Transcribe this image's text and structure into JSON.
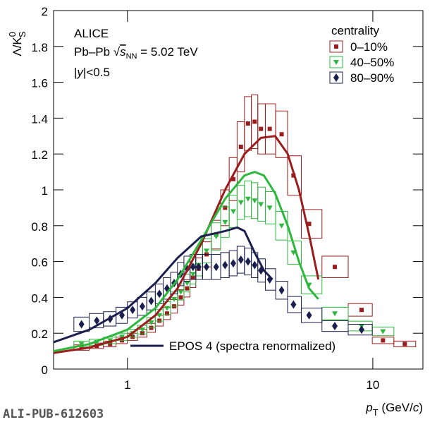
{
  "chart_data": {
    "type": "line",
    "experiment": "ALICE",
    "system": [
      "Pb–Pb ",
      "√",
      "s",
      "NN",
      " = 5.02 TeV"
    ],
    "rapidity": [
      "|",
      "y",
      "|<0.5"
    ],
    "legend_title": "centrality",
    "y_label": [
      "Λ/K",
      "0",
      "S"
    ],
    "x_label": [
      "p",
      "T",
      " (GeV/",
      "c",
      ")"
    ],
    "footer": "ALI-PUB-612603",
    "log_x": true,
    "xlim": [
      0.5,
      16
    ],
    "xticks": [
      1,
      10
    ],
    "ylim": [
      0,
      2
    ],
    "yticks": [
      0,
      0.2,
      0.4,
      0.6,
      0.8,
      1,
      1.2,
      1.4,
      1.6,
      1.8,
      2
    ],
    "x": [
      0.65,
      0.75,
      0.85,
      0.95,
      1.05,
      1.15,
      1.25,
      1.35,
      1.45,
      1.55,
      1.65,
      1.75,
      1.85,
      1.95,
      2.1,
      2.3,
      2.5,
      2.7,
      2.9,
      3.1,
      3.3,
      3.5,
      3.8,
      4.25,
      4.75,
      5.5,
      7,
      9,
      11,
      13.5
    ],
    "series": [
      {
        "name": "0–10%",
        "color": "#9b1c1c",
        "marker": "square",
        "values": [
          0.12,
          0.13,
          0.14,
          0.16,
          0.18,
          0.2,
          0.23,
          0.27,
          0.31,
          0.35,
          0.4,
          0.45,
          0.51,
          0.56,
          0.64,
          0.75,
          0.9,
          1.06,
          1.24,
          1.37,
          1.38,
          1.34,
          1.34,
          1.31,
          1.08,
          0.81,
          0.57,
          0.33,
          0.16,
          0.14
        ],
        "errors": [
          0.015,
          0.015,
          0.016,
          0.018,
          0.02,
          0.022,
          0.025,
          0.03,
          0.034,
          0.038,
          0.043,
          0.048,
          0.055,
          0.06,
          0.07,
          0.08,
          0.1,
          0.12,
          0.14,
          0.15,
          0.15,
          0.14,
          0.14,
          0.13,
          0.11,
          0.08,
          0.06,
          0.035,
          0.018,
          0.016
        ]
      },
      {
        "name": "40–50%",
        "color": "#2db83d",
        "marker": "triangle",
        "values": [
          0.14,
          0.15,
          0.16,
          0.18,
          0.2,
          0.22,
          0.26,
          0.3,
          0.34,
          0.39,
          0.43,
          0.48,
          0.53,
          0.58,
          0.66,
          0.74,
          0.82,
          0.88,
          0.93,
          0.95,
          0.94,
          0.92,
          0.9,
          0.8,
          0.65,
          0.47,
          0.31,
          0.24,
          0.21,
          null
        ],
        "errors": [
          0.016,
          0.017,
          0.018,
          0.02,
          0.022,
          0.024,
          0.028,
          0.032,
          0.036,
          0.04,
          0.045,
          0.05,
          0.055,
          0.06,
          0.068,
          0.076,
          0.085,
          0.09,
          0.095,
          0.1,
          0.1,
          0.095,
          0.09,
          0.08,
          0.065,
          0.05,
          0.035,
          0.027,
          0.024,
          null
        ]
      },
      {
        "name": "80–90%",
        "color": "#1b1f4e",
        "marker": "diamond",
        "values": [
          0.25,
          0.27,
          0.28,
          0.3,
          0.33,
          0.35,
          0.38,
          0.42,
          0.45,
          0.48,
          0.53,
          0.56,
          0.57,
          0.57,
          0.57,
          0.57,
          0.58,
          0.59,
          0.61,
          0.6,
          0.58,
          0.55,
          0.5,
          0.44,
          0.36,
          0.3,
          0.24,
          0.22,
          null,
          null
        ],
        "errors": [
          0.04,
          0.04,
          0.04,
          0.045,
          0.045,
          0.05,
          0.05,
          0.055,
          0.06,
          0.06,
          0.065,
          0.07,
          0.07,
          0.07,
          0.07,
          0.07,
          0.07,
          0.07,
          0.075,
          0.075,
          0.07,
          0.065,
          0.06,
          0.05,
          0.045,
          0.04,
          0.03,
          0.03,
          null,
          null
        ]
      }
    ],
    "model": {
      "name": "EPOS 4 (spectra renormalized)",
      "color": "#1b1f4e",
      "curves": [
        {
          "color": "#9b1c1c",
          "x": [
            0.5,
            0.7,
            1,
            1.3,
            1.6,
            2,
            2.5,
            3,
            3.5,
            4,
            4.5,
            5,
            5.5,
            6
          ],
          "values": [
            0.09,
            0.12,
            0.18,
            0.3,
            0.45,
            0.7,
            1,
            1.2,
            1.29,
            1.3,
            1.2,
            1,
            0.75,
            0.5
          ]
        },
        {
          "color": "#2db83d",
          "x": [
            0.5,
            0.7,
            1,
            1.3,
            1.6,
            2,
            2.5,
            3,
            3.3,
            3.6,
            4,
            4.5,
            5,
            5.5,
            6
          ],
          "values": [
            0.1,
            0.14,
            0.22,
            0.34,
            0.5,
            0.72,
            0.95,
            1.08,
            1.1,
            1.08,
            0.98,
            0.8,
            0.6,
            0.45,
            0.39
          ]
        },
        {
          "color": "#1b1f4e",
          "x": [
            0.5,
            0.7,
            1,
            1.3,
            1.6,
            2,
            2.5,
            2.8,
            3,
            3.3,
            3.6,
            3.9
          ],
          "values": [
            0.15,
            0.22,
            0.34,
            0.48,
            0.62,
            0.74,
            0.77,
            0.79,
            0.77,
            0.65,
            0.55,
            0.5
          ]
        }
      ]
    }
  }
}
